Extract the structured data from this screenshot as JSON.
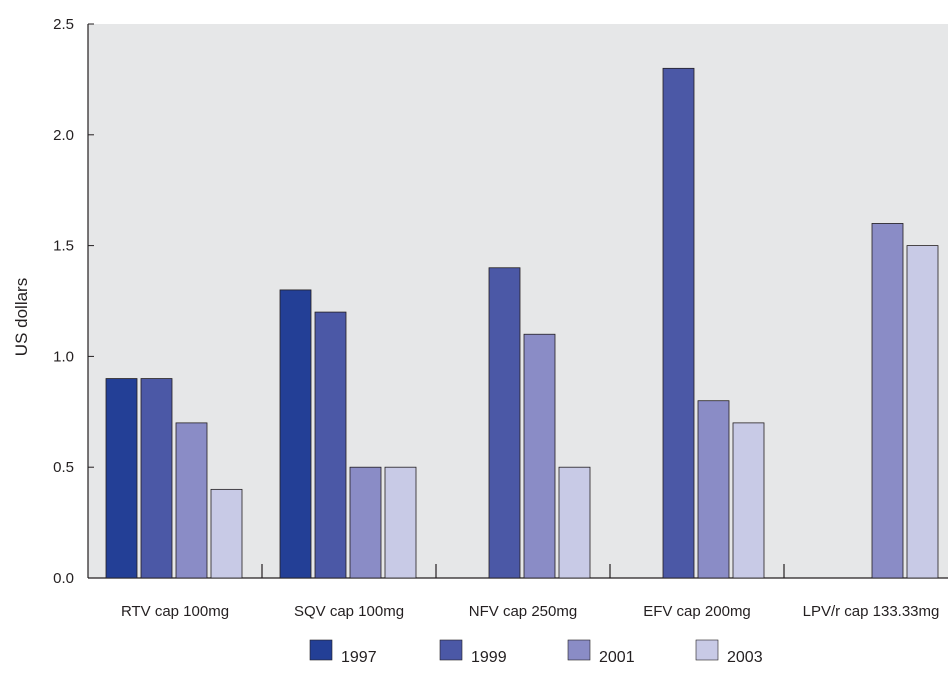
{
  "chart_data": {
    "type": "bar",
    "ylabel": "US dollars",
    "ylim": [
      0,
      2.5
    ],
    "yticks": [
      "0.0",
      "0.5",
      "1.0",
      "1.5",
      "2.0",
      "2.5"
    ],
    "categories": [
      "RTV cap 100mg",
      "SQV cap 100mg",
      "NFV cap 250mg",
      "EFV cap 200mg",
      "LPV/r cap 133.33mg"
    ],
    "series": [
      {
        "name": "1997",
        "color": "#233f96",
        "values": [
          0.9,
          1.3,
          null,
          null,
          null
        ]
      },
      {
        "name": "1999",
        "color": "#4b58a6",
        "values": [
          0.9,
          1.2,
          1.4,
          2.3,
          null
        ]
      },
      {
        "name": "2001",
        "color": "#8a8cc6",
        "values": [
          0.7,
          0.5,
          1.1,
          0.8,
          1.6
        ]
      },
      {
        "name": "2003",
        "color": "#c8cae6",
        "values": [
          0.4,
          0.5,
          0.5,
          0.7,
          1.5
        ]
      }
    ],
    "grid": false,
    "legend": "bottom",
    "plot_background": "#e6e7e8"
  }
}
